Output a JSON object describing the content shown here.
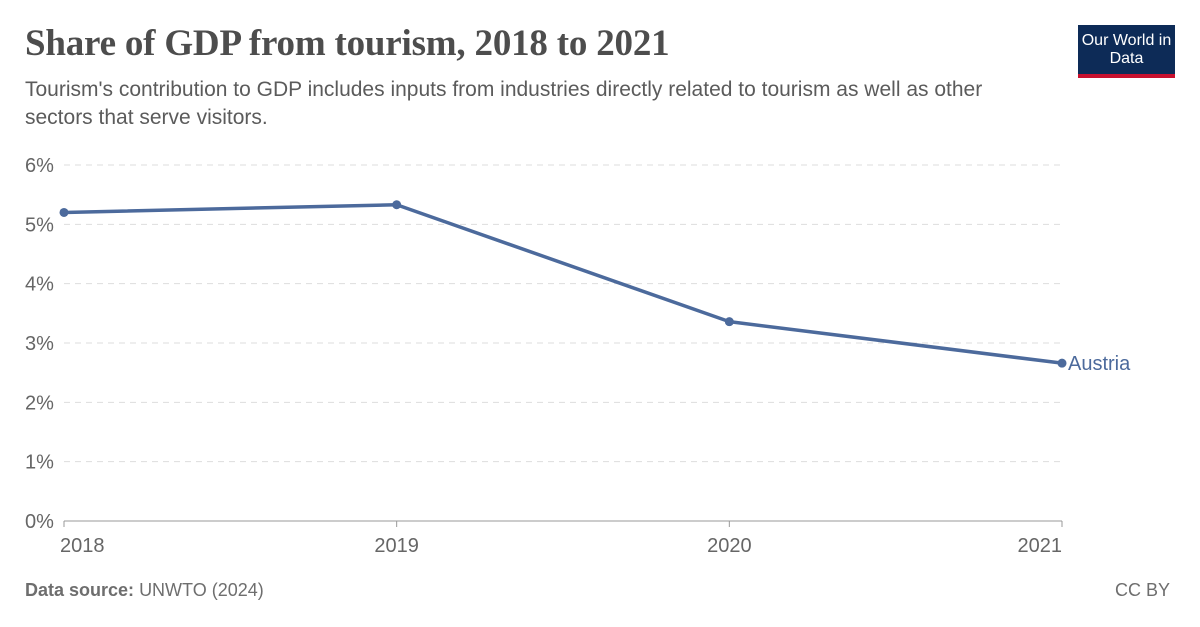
{
  "header": {
    "title": "Share of GDP from tourism, 2018 to 2021",
    "subtitle": "Tourism's contribution to GDP includes inputs from industries directly related to tourism as well as other sectors that serve visitors."
  },
  "logo": {
    "text": "Our World in Data"
  },
  "footer": {
    "source_label": "Data source:",
    "source_value": "UNWTO (2024)",
    "license": "CC BY"
  },
  "colors": {
    "series": "#4c6a9c",
    "grid": "#dddddd",
    "axis_text": "#666666"
  },
  "chart_data": {
    "type": "line",
    "title": "Share of GDP from tourism, 2018 to 2021",
    "xlabel": "",
    "ylabel": "",
    "x": [
      2018,
      2019,
      2020,
      2021
    ],
    "x_tick_labels": [
      "2018",
      "2019",
      "2020",
      "2021"
    ],
    "y_tick_labels": [
      "0%",
      "1%",
      "2%",
      "3%",
      "4%",
      "5%",
      "6%"
    ],
    "y_ticks": [
      0,
      1,
      2,
      3,
      4,
      5,
      6
    ],
    "ylim": [
      0,
      6
    ],
    "grid": true,
    "series": [
      {
        "name": "Austria",
        "values": [
          5.2,
          5.33,
          3.36,
          2.66
        ]
      }
    ]
  }
}
